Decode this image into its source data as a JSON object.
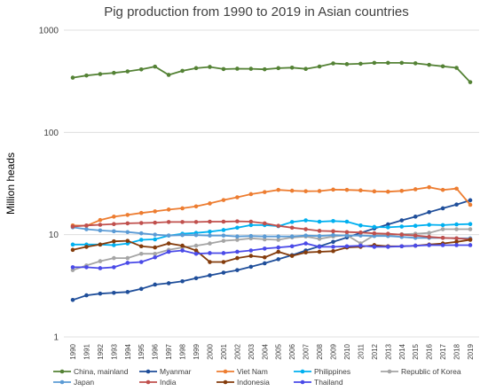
{
  "chart_data": {
    "type": "line",
    "title": "Pig production from 1990 to 2019 in Asian countries",
    "ylabel": "Million heads",
    "xlabel": "",
    "yscale": "log",
    "ylim": [
      1,
      1000
    ],
    "yticks": [
      1,
      10,
      100,
      1000
    ],
    "grid": true,
    "legend_position": "bottom",
    "x": [
      "1990",
      "1991",
      "1992",
      "1993",
      "1994",
      "1995",
      "1996",
      "1997",
      "1998",
      "1999",
      "2000",
      "2001",
      "2002",
      "2003",
      "2004",
      "2005",
      "2006",
      "2007",
      "2008",
      "2009",
      "2010",
      "2011",
      "2012",
      "2013",
      "2014",
      "2015",
      "2016",
      "2017",
      "2018",
      "2019"
    ],
    "series": [
      {
        "name": "China, mainland",
        "color": "#548235",
        "values": [
          343,
          360,
          372,
          382,
          395,
          413,
          440,
          365,
          400,
          425,
          437,
          416,
          420,
          419,
          414,
          425,
          430,
          418,
          441,
          473,
          465,
          469,
          479,
          479,
          479,
          474,
          458,
          443,
          428,
          310
        ]
      },
      {
        "name": "Myanmar",
        "color": "#1f4e9a",
        "values": [
          2.3,
          2.55,
          2.65,
          2.7,
          2.75,
          2.95,
          3.25,
          3.35,
          3.5,
          3.75,
          4.0,
          4.25,
          4.5,
          4.85,
          5.25,
          5.75,
          6.3,
          7.0,
          7.7,
          8.5,
          9.4,
          10.4,
          11.5,
          12.6,
          13.8,
          15.0,
          16.6,
          18.1,
          19.7,
          21.7
        ]
      },
      {
        "name": "Viet Nam",
        "color": "#ed7d31",
        "values": [
          12.3,
          12.2,
          13.9,
          15.0,
          15.6,
          16.3,
          16.9,
          17.6,
          18.1,
          18.9,
          20.2,
          21.8,
          23.2,
          24.9,
          26.1,
          27.4,
          26.9,
          26.6,
          26.7,
          27.6,
          27.4,
          27.1,
          26.5,
          26.3,
          26.8,
          27.8,
          29.1,
          27.4,
          28.2,
          19.6
        ]
      },
      {
        "name": "Philippines",
        "color": "#00b0f0",
        "values": [
          8.0,
          8.0,
          8.0,
          7.9,
          8.2,
          8.9,
          9.0,
          9.8,
          10.2,
          10.4,
          10.7,
          11.1,
          11.7,
          12.4,
          12.4,
          12.1,
          13.3,
          13.8,
          13.4,
          13.6,
          13.4,
          12.3,
          11.9,
          11.8,
          12.0,
          12.2,
          12.5,
          12.4,
          12.6,
          12.7
        ]
      },
      {
        "name": "Republic of Korea",
        "color": "#a5a5a5",
        "values": [
          4.5,
          5.0,
          5.5,
          5.9,
          5.9,
          6.5,
          6.5,
          7.1,
          7.5,
          7.8,
          8.2,
          8.7,
          8.9,
          9.2,
          9.0,
          8.9,
          9.4,
          9.6,
          9.1,
          9.6,
          9.9,
          8.2,
          9.9,
          9.9,
          10.1,
          10.2,
          10.4,
          11.3,
          11.3,
          11.3
        ]
      },
      {
        "name": "Japan",
        "color": "#5b9bd5",
        "values": [
          11.8,
          11.3,
          11.0,
          10.8,
          10.6,
          10.3,
          10.0,
          9.8,
          9.9,
          9.9,
          9.8,
          9.8,
          9.6,
          9.7,
          9.6,
          9.6,
          9.6,
          9.8,
          9.7,
          9.9,
          9.8,
          9.8,
          9.7,
          9.7,
          9.5,
          9.3,
          9.3,
          9.3,
          9.2,
          9.2
        ]
      },
      {
        "name": "India",
        "color": "#c0504d",
        "values": [
          12.0,
          12.3,
          12.5,
          12.7,
          12.9,
          13.0,
          13.1,
          13.3,
          13.3,
          13.3,
          13.4,
          13.4,
          13.5,
          13.4,
          12.9,
          12.2,
          11.7,
          11.3,
          10.9,
          10.8,
          10.6,
          10.5,
          10.3,
          10.2,
          10.0,
          9.8,
          9.5,
          9.3,
          9.2,
          9.0
        ]
      },
      {
        "name": "Indonesia",
        "color": "#843c0c",
        "values": [
          7.1,
          7.6,
          8.0,
          8.6,
          8.7,
          7.7,
          7.5,
          8.2,
          7.8,
          7.0,
          5.4,
          5.4,
          5.9,
          6.2,
          6.0,
          6.8,
          6.2,
          6.7,
          6.8,
          6.9,
          7.5,
          7.6,
          7.9,
          7.7,
          7.7,
          7.8,
          8.0,
          8.2,
          8.5,
          8.9
        ]
      },
      {
        "name": "Thailand",
        "color": "#4a4ae8",
        "values": [
          4.8,
          4.8,
          4.7,
          4.8,
          5.3,
          5.4,
          6.0,
          6.8,
          7.0,
          6.5,
          6.6,
          6.6,
          6.8,
          7.0,
          7.3,
          7.5,
          7.7,
          8.2,
          7.6,
          7.6,
          7.7,
          7.8,
          7.6,
          7.6,
          7.7,
          7.8,
          7.9,
          7.9,
          7.9,
          7.9
        ]
      }
    ]
  }
}
